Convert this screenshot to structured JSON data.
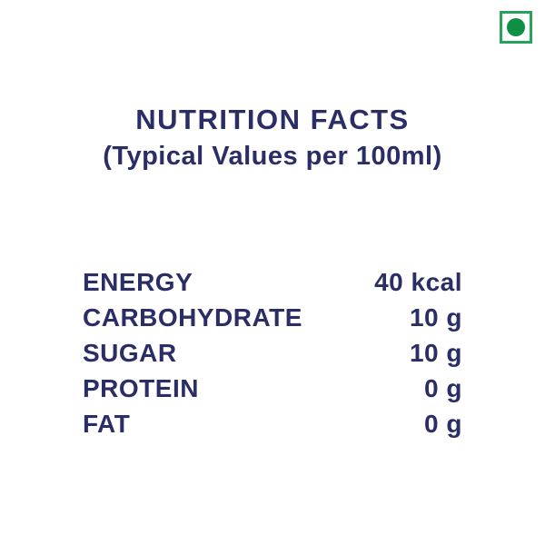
{
  "veg_mark": {
    "meaning": "vegetarian-mark",
    "border_color": "#27a45c",
    "dot_color": "#0d9044"
  },
  "header": {
    "title": "NUTRITION FACTS",
    "subtitle": "(Typical Values per 100ml)"
  },
  "nutrition": {
    "rows": [
      {
        "label": "ENERGY",
        "value": "40 kcal"
      },
      {
        "label": "CARBOHYDRATE",
        "value": "10 g"
      },
      {
        "label": "SUGAR",
        "value": "10 g"
      },
      {
        "label": "PROTEIN",
        "value": "0 g"
      },
      {
        "label": "FAT",
        "value": "0 g"
      }
    ]
  },
  "colors": {
    "text": "#2b2d66",
    "background": "#ffffff"
  }
}
